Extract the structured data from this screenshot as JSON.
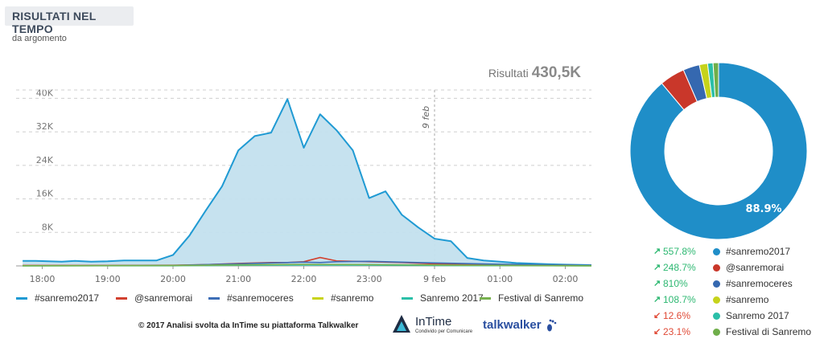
{
  "header": {
    "title": "RISULTATI NEL TEMPO",
    "subtitle": "da argomento"
  },
  "results": {
    "label": "Risultati",
    "value": "430,5K"
  },
  "chart_data": [
    {
      "type": "area",
      "title": "RISULTATI NEL TEMPO",
      "subtitle": "da argomento",
      "x_labels": [
        "18:00",
        "19:00",
        "20:00",
        "21:00",
        "22:00",
        "23:00",
        "9 feb",
        "01:00",
        "02:00"
      ],
      "y_ticks": [
        "8K",
        "16K",
        "24K",
        "32K",
        "40K"
      ],
      "ylim": [
        0,
        42000
      ],
      "x_range_hours": [
        17.6,
        26.4
      ],
      "annotation": {
        "label": "9 feb",
        "x_hour": 24.0
      },
      "series": [
        {
          "name": "#sanremo2017",
          "color": "#1f9ad3",
          "filled": true,
          "x": [
            17.7,
            17.9,
            18.1,
            18.3,
            18.5,
            18.75,
            19.0,
            19.25,
            19.5,
            19.75,
            20.0,
            20.25,
            20.5,
            20.75,
            21.0,
            21.25,
            21.5,
            21.75,
            22.0,
            22.25,
            22.5,
            22.75,
            23.0,
            23.25,
            23.5,
            23.75,
            24.0,
            24.25,
            24.5,
            24.75,
            25.0,
            25.25,
            25.5,
            25.75,
            26.0,
            26.25,
            26.4
          ],
          "y": [
            1200,
            1200,
            1100,
            1000,
            1200,
            1000,
            1100,
            1300,
            1300,
            1300,
            2600,
            7200,
            13200,
            19000,
            27600,
            31000,
            31800,
            39800,
            28200,
            36200,
            32400,
            27600,
            16200,
            17800,
            12200,
            9200,
            6500,
            5900,
            1900,
            1300,
            1000,
            700,
            550,
            400,
            300,
            250,
            200
          ]
        },
        {
          "name": "@sanremorai",
          "color": "#d2412f",
          "x": [
            17.7,
            19.0,
            20.0,
            20.5,
            21.0,
            21.5,
            21.75,
            22.0,
            22.25,
            22.5,
            23.0,
            23.5,
            24.0,
            25.0,
            26.4
          ],
          "y": [
            100,
            100,
            150,
            300,
            600,
            800,
            800,
            1000,
            2000,
            1200,
            1000,
            800,
            500,
            300,
            100
          ]
        },
        {
          "name": "#sanremoceres",
          "color": "#3d6eb6",
          "x": [
            17.7,
            19.0,
            20.0,
            20.5,
            21.0,
            21.5,
            22.0,
            22.25,
            22.5,
            23.0,
            23.5,
            24.0,
            25.0,
            26.4
          ],
          "y": [
            50,
            50,
            100,
            300,
            500,
            700,
            900,
            800,
            1000,
            1100,
            900,
            700,
            400,
            100
          ]
        },
        {
          "name": "#sanremo",
          "color": "#c8d419",
          "x": [
            17.7,
            20.0,
            21.0,
            22.0,
            23.0,
            24.0,
            25.0,
            26.4
          ],
          "y": [
            30,
            60,
            200,
            300,
            250,
            150,
            80,
            30
          ]
        },
        {
          "name": "Sanremo 2017",
          "color": "#2bbfa8",
          "x": [
            17.7,
            20.0,
            21.0,
            22.0,
            23.0,
            24.0,
            25.0,
            26.4
          ],
          "y": [
            20,
            40,
            150,
            200,
            180,
            100,
            50,
            20
          ]
        },
        {
          "name": "Festival di Sanremo",
          "color": "#78b14f",
          "x": [
            17.7,
            20.0,
            21.0,
            22.0,
            23.0,
            24.0,
            25.0,
            26.4
          ],
          "y": [
            40,
            80,
            250,
            350,
            300,
            200,
            100,
            40
          ]
        }
      ]
    },
    {
      "type": "pie",
      "donut": true,
      "labels": [
        "#sanremo2017",
        "@sanremorai",
        "#sanremoceres",
        "#sanremo",
        "Sanremo 2017",
        "Festival di Sanremo"
      ],
      "values": [
        88.9,
        4.6,
        3.0,
        1.5,
        1.0,
        1.0
      ],
      "colors": [
        "#1f8ec8",
        "#c9372a",
        "#3568b0",
        "#c6d31b",
        "#2bbfa8",
        "#6fae4a"
      ],
      "center_label": "88.9%",
      "changes": [
        {
          "label": "557.8%",
          "direction": "up"
        },
        {
          "label": "248.7%",
          "direction": "up"
        },
        {
          "label": "810%",
          "direction": "up"
        },
        {
          "label": "108.7%",
          "direction": "up"
        },
        {
          "label": "12.6%",
          "direction": "down"
        },
        {
          "label": "23.1%",
          "direction": "down"
        }
      ]
    }
  ],
  "footer": {
    "credit": "© 2017  Analisi svolta da InTime su piattaforma Talkwalker",
    "intime_name": "InTime",
    "intime_tagline": "Condivido per Comunicare",
    "talkwalker": "talkwalker"
  },
  "colors": {
    "up": "#2eb872",
    "down": "#e04a36",
    "grid": "#cfcfcf"
  }
}
